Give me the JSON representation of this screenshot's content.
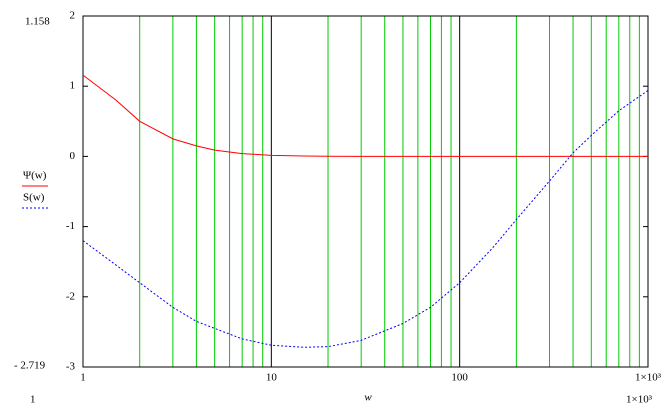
{
  "chart_data": {
    "type": "line",
    "x_label": "w",
    "x": [
      1,
      1.5,
      2,
      3,
      4,
      5,
      7,
      10,
      15,
      20,
      30,
      50,
      70,
      100,
      150,
      200,
      300,
      400,
      500,
      700,
      1000
    ],
    "series": [
      {
        "name": "Ψ(w)",
        "color": "#ff0000",
        "dash": false,
        "values": [
          1.158,
          0.8,
          0.5,
          0.25,
          0.15,
          0.09,
          0.04,
          0.015,
          0.006,
          0.003,
          0.001,
          0,
          0,
          0,
          0,
          0,
          0,
          0,
          0,
          0,
          0
        ]
      },
      {
        "name": "S(w)",
        "color": "#0000ff",
        "dash": true,
        "values": [
          -1.2,
          -1.55,
          -1.8,
          -2.15,
          -2.35,
          -2.45,
          -2.6,
          -2.69,
          -2.719,
          -2.71,
          -2.62,
          -2.38,
          -2.15,
          -1.8,
          -1.3,
          -0.9,
          -0.35,
          0.05,
          0.3,
          0.65,
          0.94
        ]
      }
    ],
    "xlim": [
      1,
      1000
    ],
    "ylim": [
      -3,
      2
    ],
    "x_log": true,
    "xticks": [
      1,
      10,
      100,
      {
        "value": 1000,
        "label": "1×10³"
      }
    ],
    "x_minor_ticks": [
      2,
      3,
      4,
      5,
      6,
      7,
      8,
      9,
      20,
      30,
      40,
      50,
      60,
      70,
      80,
      90,
      200,
      300,
      400,
      500,
      600,
      700,
      800,
      900
    ],
    "yticks": [
      -3,
      -2,
      -1,
      0,
      1,
      2
    ],
    "grid": true,
    "y_marker_labels": [
      "1.158",
      "- 2.719"
    ],
    "x_limit_labels": [
      "1",
      "1×10³"
    ]
  }
}
